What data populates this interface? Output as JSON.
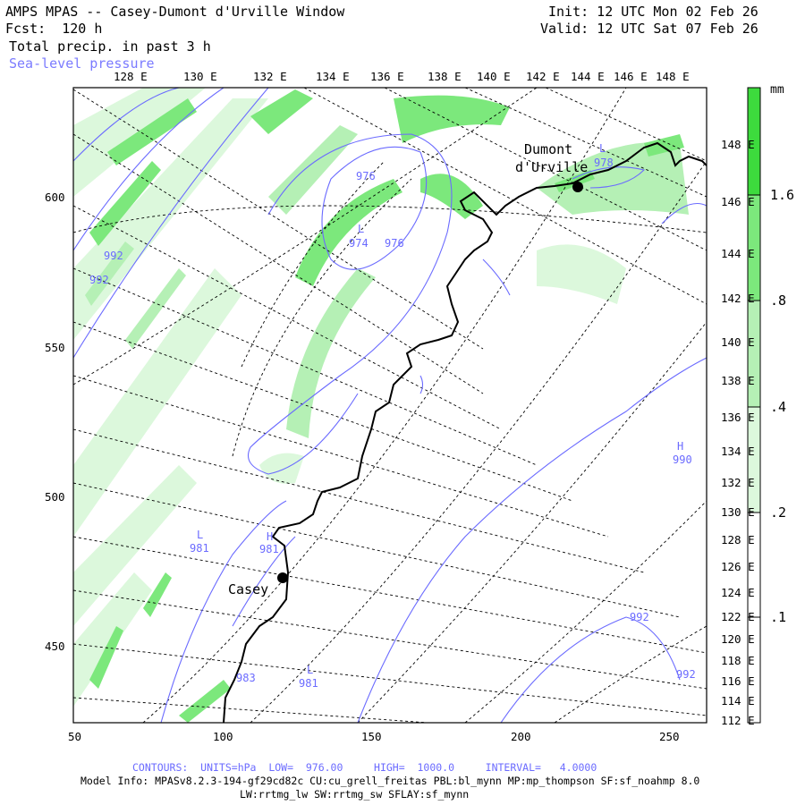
{
  "header": {
    "title": "AMPS MPAS -- Casey-Dumont d'Urville Window",
    "forecast": "Fcst:  120 h",
    "field": "Total precip. in past 3 h",
    "overlay": "Sea-level pressure",
    "init": "Init: 12 UTC Mon 02 Feb 26",
    "valid": "Valid: 12 UTC Sat 07 Feb 26"
  },
  "axes": {
    "x_ticks": [
      "50",
      "100",
      "150",
      "200",
      "250"
    ],
    "y_ticks": [
      "600",
      "550",
      "500",
      "450"
    ],
    "lon_top": [
      "128 E",
      "130 E",
      "132 E",
      "134 E",
      "136 E",
      "138 E",
      "140 E",
      "142 E",
      "144 E",
      "146 E",
      "148 E"
    ],
    "lon_right": [
      "148 E",
      "146 E",
      "144 E",
      "142 E",
      "140 E",
      "138 E",
      "136 E",
      "134 E",
      "132 E",
      "130 E",
      "128 E",
      "126 E",
      "124 E",
      "122 E",
      "120 E",
      "118 E",
      "116 E",
      "114 E",
      "112 E"
    ]
  },
  "colorbar": {
    "unit": "mm",
    "labels": [
      "1.6",
      ".8",
      ".4",
      ".2",
      ".1"
    ],
    "colors": [
      "#3ddb3d",
      "#7ce87c",
      "#b5f0b5",
      "#dcf8dc",
      "#ffffff"
    ]
  },
  "stations": [
    {
      "name": "Casey"
    },
    {
      "name": "Dumont\nd'Urville"
    }
  ],
  "pressure_labels": {
    "L976a": "976",
    "L974": "974",
    "L976b": "976",
    "p992a": "992",
    "p992b": "992",
    "L981a": "981",
    "H981": "981",
    "L981b": "981",
    "p992c": "992",
    "p992d": "992",
    "H990": "990",
    "L978": "978",
    "p983": "983",
    "L": "L",
    "H": "H"
  },
  "footer": {
    "contours": "CONTOURS:  UNITS=hPa  LOW=  976.00     HIGH=  1000.0     INTERVAL=   4.0000",
    "model_info": "Model Info: MPASv8.2.3-194-gf29cd82c CU:cu_grell_freitas PBL:bl_mynn MP:mp_thompson SF:sf_noahmp 8.0",
    "model_info2": "LW:rrtmg_lw SW:rrtmg_sw SFLAY:sf_mynn"
  }
}
